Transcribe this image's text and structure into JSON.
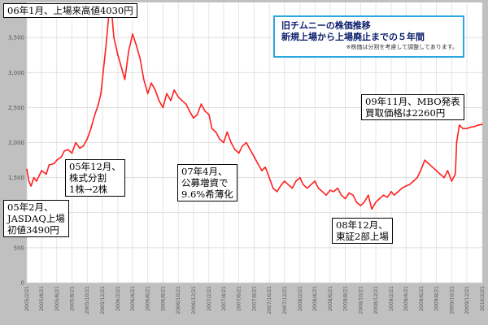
{
  "colors": {
    "line": "#ff2020",
    "plot_bg": "#ffffff",
    "grid": "#d4d4d4",
    "frame": "#c0c0c0",
    "title_border": "#2aa7e0",
    "title_text": "#0a1d6b"
  },
  "title_box": {
    "line1": "旧チムニーの株価推移",
    "line2": "新規上場から上場廃止までの５年間",
    "note": "※株価は分割を考慮して調整してあります。"
  },
  "annotations": [
    {
      "id": "ann-top",
      "text": "06年1月、上場来高値4030円"
    },
    {
      "id": "ann-ipo",
      "text": "05年2月、\nJASDAQ上場\n初値3490円"
    },
    {
      "id": "ann-split",
      "text": "05年12月、\n株式分割\n1株→2株"
    },
    {
      "id": "ann-offering",
      "text": "07年4月、\n公募増資で\n9.6%希薄化"
    },
    {
      "id": "ann-tse2",
      "text": "08年12月、\n東証2部上場"
    },
    {
      "id": "ann-mbo",
      "text": "09年11月、MBO発表\n買取価格は2260円"
    }
  ],
  "chart_data": {
    "type": "line",
    "title": "",
    "xlabel": "",
    "ylabel": "",
    "ylim": [
      0,
      4000
    ],
    "yticks": [
      0,
      500,
      1000,
      1500,
      2000,
      2500,
      3000,
      3500
    ],
    "ytick_labels": [
      "0",
      "500",
      "1,000",
      "1,500",
      "2,000",
      "2,500",
      "3,000",
      "3,500"
    ],
    "xlim": [
      "2005/2/21",
      "2010/2/21"
    ],
    "xtick_labels": [
      "2005/2/21",
      "2005/4/21",
      "2005/6/21",
      "2005/8/21",
      "2005/10/21",
      "2005/12/21",
      "2006/2/21",
      "2006/4/21",
      "2006/6/21",
      "2006/8/21",
      "2006/10/21",
      "2006/12/21",
      "2007/2/21",
      "2007/4/21",
      "2007/6/21",
      "2007/8/21",
      "2007/10/21",
      "2007/12/21",
      "2008/2/21",
      "2008/4/21",
      "2008/6/21",
      "2008/8/21",
      "2008/10/21",
      "2008/12/21",
      "2009/2/21",
      "2009/4/21",
      "2009/6/21",
      "2009/8/21",
      "2009/10/21",
      "2009/12/21",
      "2010/2/21"
    ],
    "grid": true,
    "series": [
      {
        "x": [
          "2005/2/21",
          "2005/3/1",
          "2005/3/10",
          "2005/3/21",
          "2005/4/1",
          "2005/4/21",
          "2005/5/10",
          "2005/5/21",
          "2005/6/10",
          "2005/6/21",
          "2005/7/10",
          "2005/7/21",
          "2005/8/5",
          "2005/8/21",
          "2005/9/5",
          "2005/9/21",
          "2005/10/5",
          "2005/10/21",
          "2005/11/5",
          "2005/11/21",
          "2005/12/5",
          "2005/12/15",
          "2005/12/21",
          "2006/1/5",
          "2006/1/15",
          "2006/1/25",
          "2006/2/5",
          "2006/2/21",
          "2006/3/5",
          "2006/3/21",
          "2006/4/5",
          "2006/4/21",
          "2006/5/5",
          "2006/5/21",
          "2006/6/5",
          "2006/6/21",
          "2006/7/5",
          "2006/7/21",
          "2006/8/5",
          "2006/8/21",
          "2006/9/5",
          "2006/9/21",
          "2006/10/5",
          "2006/10/21",
          "2006/11/5",
          "2006/11/21",
          "2006/12/5",
          "2006/12/21",
          "2007/1/5",
          "2007/1/21",
          "2007/2/5",
          "2007/2/21",
          "2007/3/5",
          "2007/3/21",
          "2007/4/5",
          "2007/4/21",
          "2007/5/5",
          "2007/5/21",
          "2007/6/5",
          "2007/6/21",
          "2007/7/5",
          "2007/7/21",
          "2007/8/5",
          "2007/8/21",
          "2007/9/5",
          "2007/9/21",
          "2007/10/5",
          "2007/10/21",
          "2007/11/5",
          "2007/11/21",
          "2007/12/5",
          "2007/12/21",
          "2008/1/5",
          "2008/1/21",
          "2008/2/5",
          "2008/2/21",
          "2008/3/5",
          "2008/3/21",
          "2008/4/5",
          "2008/4/21",
          "2008/5/5",
          "2008/5/21",
          "2008/6/5",
          "2008/6/21",
          "2008/7/5",
          "2008/7/21",
          "2008/8/5",
          "2008/8/21",
          "2008/9/5",
          "2008/9/21",
          "2008/10/5",
          "2008/10/21",
          "2008/11/5",
          "2008/11/21",
          "2008/12/5",
          "2008/12/21",
          "2009/1/5",
          "2009/1/21",
          "2009/2/5",
          "2009/2/21",
          "2009/3/5",
          "2009/3/21",
          "2009/4/5",
          "2009/4/21",
          "2009/5/5",
          "2009/5/21",
          "2009/6/5",
          "2009/6/21",
          "2009/7/5",
          "2009/7/21",
          "2009/8/5",
          "2009/8/21",
          "2009/9/5",
          "2009/9/21",
          "2009/10/5",
          "2009/10/21",
          "2009/11/5",
          "2009/11/10",
          "2009/11/21",
          "2009/12/5",
          "2009/12/21",
          "2010/1/5",
          "2010/1/21",
          "2010/2/5",
          "2010/2/21"
        ],
        "y": [
          1620,
          1450,
          1380,
          1500,
          1450,
          1600,
          1550,
          1680,
          1700,
          1750,
          1800,
          1880,
          1900,
          1850,
          2000,
          1920,
          1950,
          2050,
          2200,
          2400,
          2550,
          2700,
          2900,
          3400,
          3800,
          3950,
          3500,
          3250,
          3100,
          2900,
          3300,
          3550,
          3400,
          3200,
          2900,
          2700,
          2850,
          2750,
          2600,
          2500,
          2700,
          2600,
          2750,
          2650,
          2600,
          2550,
          2450,
          2350,
          2400,
          2550,
          2450,
          2400,
          2200,
          2150,
          2050,
          2000,
          2150,
          2000,
          1900,
          1850,
          1950,
          2000,
          1900,
          1800,
          1700,
          1600,
          1650,
          1500,
          1350,
          1300,
          1380,
          1450,
          1400,
          1350,
          1450,
          1500,
          1400,
          1350,
          1400,
          1450,
          1350,
          1300,
          1250,
          1320,
          1300,
          1350,
          1250,
          1200,
          1280,
          1250,
          1150,
          1100,
          1150,
          1250,
          1050,
          1150,
          1200,
          1250,
          1220,
          1300,
          1250,
          1300,
          1350,
          1380,
          1400,
          1450,
          1500,
          1620,
          1750,
          1700,
          1650,
          1600,
          1550,
          1500,
          1600,
          1450,
          1550,
          2000,
          2250,
          2200,
          2200,
          2220,
          2230,
          2250,
          2260
        ]
      }
    ]
  }
}
